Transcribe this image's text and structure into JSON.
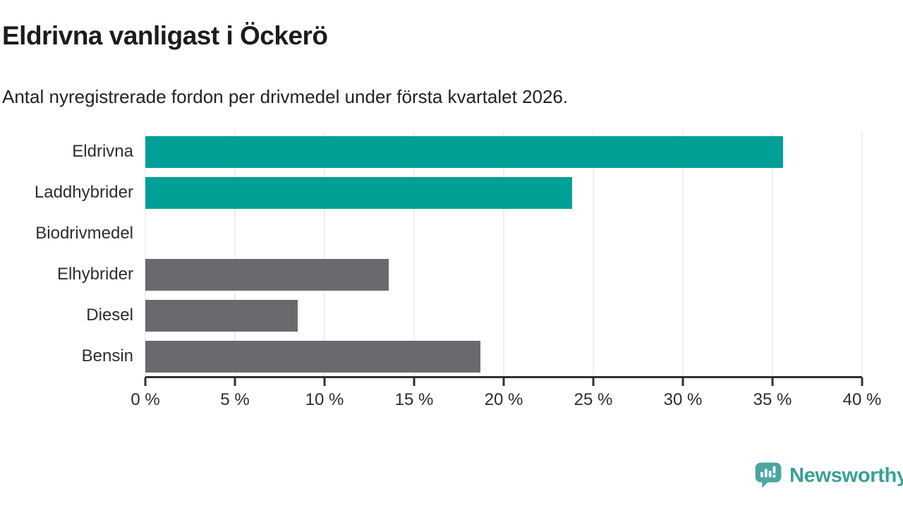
{
  "header": {
    "title": "Eldrivna vanligast i Öckerö",
    "subtitle": "Antal nyregistrerade fordon per drivmedel under första kvartalet 2026."
  },
  "chart_data": {
    "type": "bar",
    "orientation": "horizontal",
    "title": "Eldrivna vanligast i Öckerö",
    "subtitle": "Antal nyregistrerade fordon per drivmedel under första kvartalet 2026.",
    "categories": [
      "Eldrivna",
      "Laddhybrider",
      "Biodrivmedel",
      "Elhybrider",
      "Diesel",
      "Bensin"
    ],
    "values": [
      35.6,
      23.8,
      0,
      13.6,
      8.5,
      18.7
    ],
    "unit": "%",
    "xlabel": "",
    "ylabel": "",
    "xlim": [
      0,
      40
    ],
    "x_ticks": [
      0,
      5,
      10,
      15,
      20,
      25,
      30,
      35,
      40
    ],
    "x_tick_labels": [
      "0 %",
      "5 %",
      "10 %",
      "15 %",
      "20 %",
      "25 %",
      "30 %",
      "35 %",
      "40 %"
    ],
    "grid": true,
    "legend": "none",
    "bar_colors": [
      "#00a096",
      "#00a096",
      "#6a6a6e",
      "#6a6a6e",
      "#6a6a6e",
      "#6a6a6e"
    ],
    "highlight_color": "#00a096",
    "default_color": "#6a6a6e",
    "gridline_color": "#dedede",
    "axis_color": "#303030"
  },
  "footer": {
    "brand": "Newsworthy",
    "brand_color": "#38a09b",
    "logo_bubble_color": "#4ba5a1"
  }
}
